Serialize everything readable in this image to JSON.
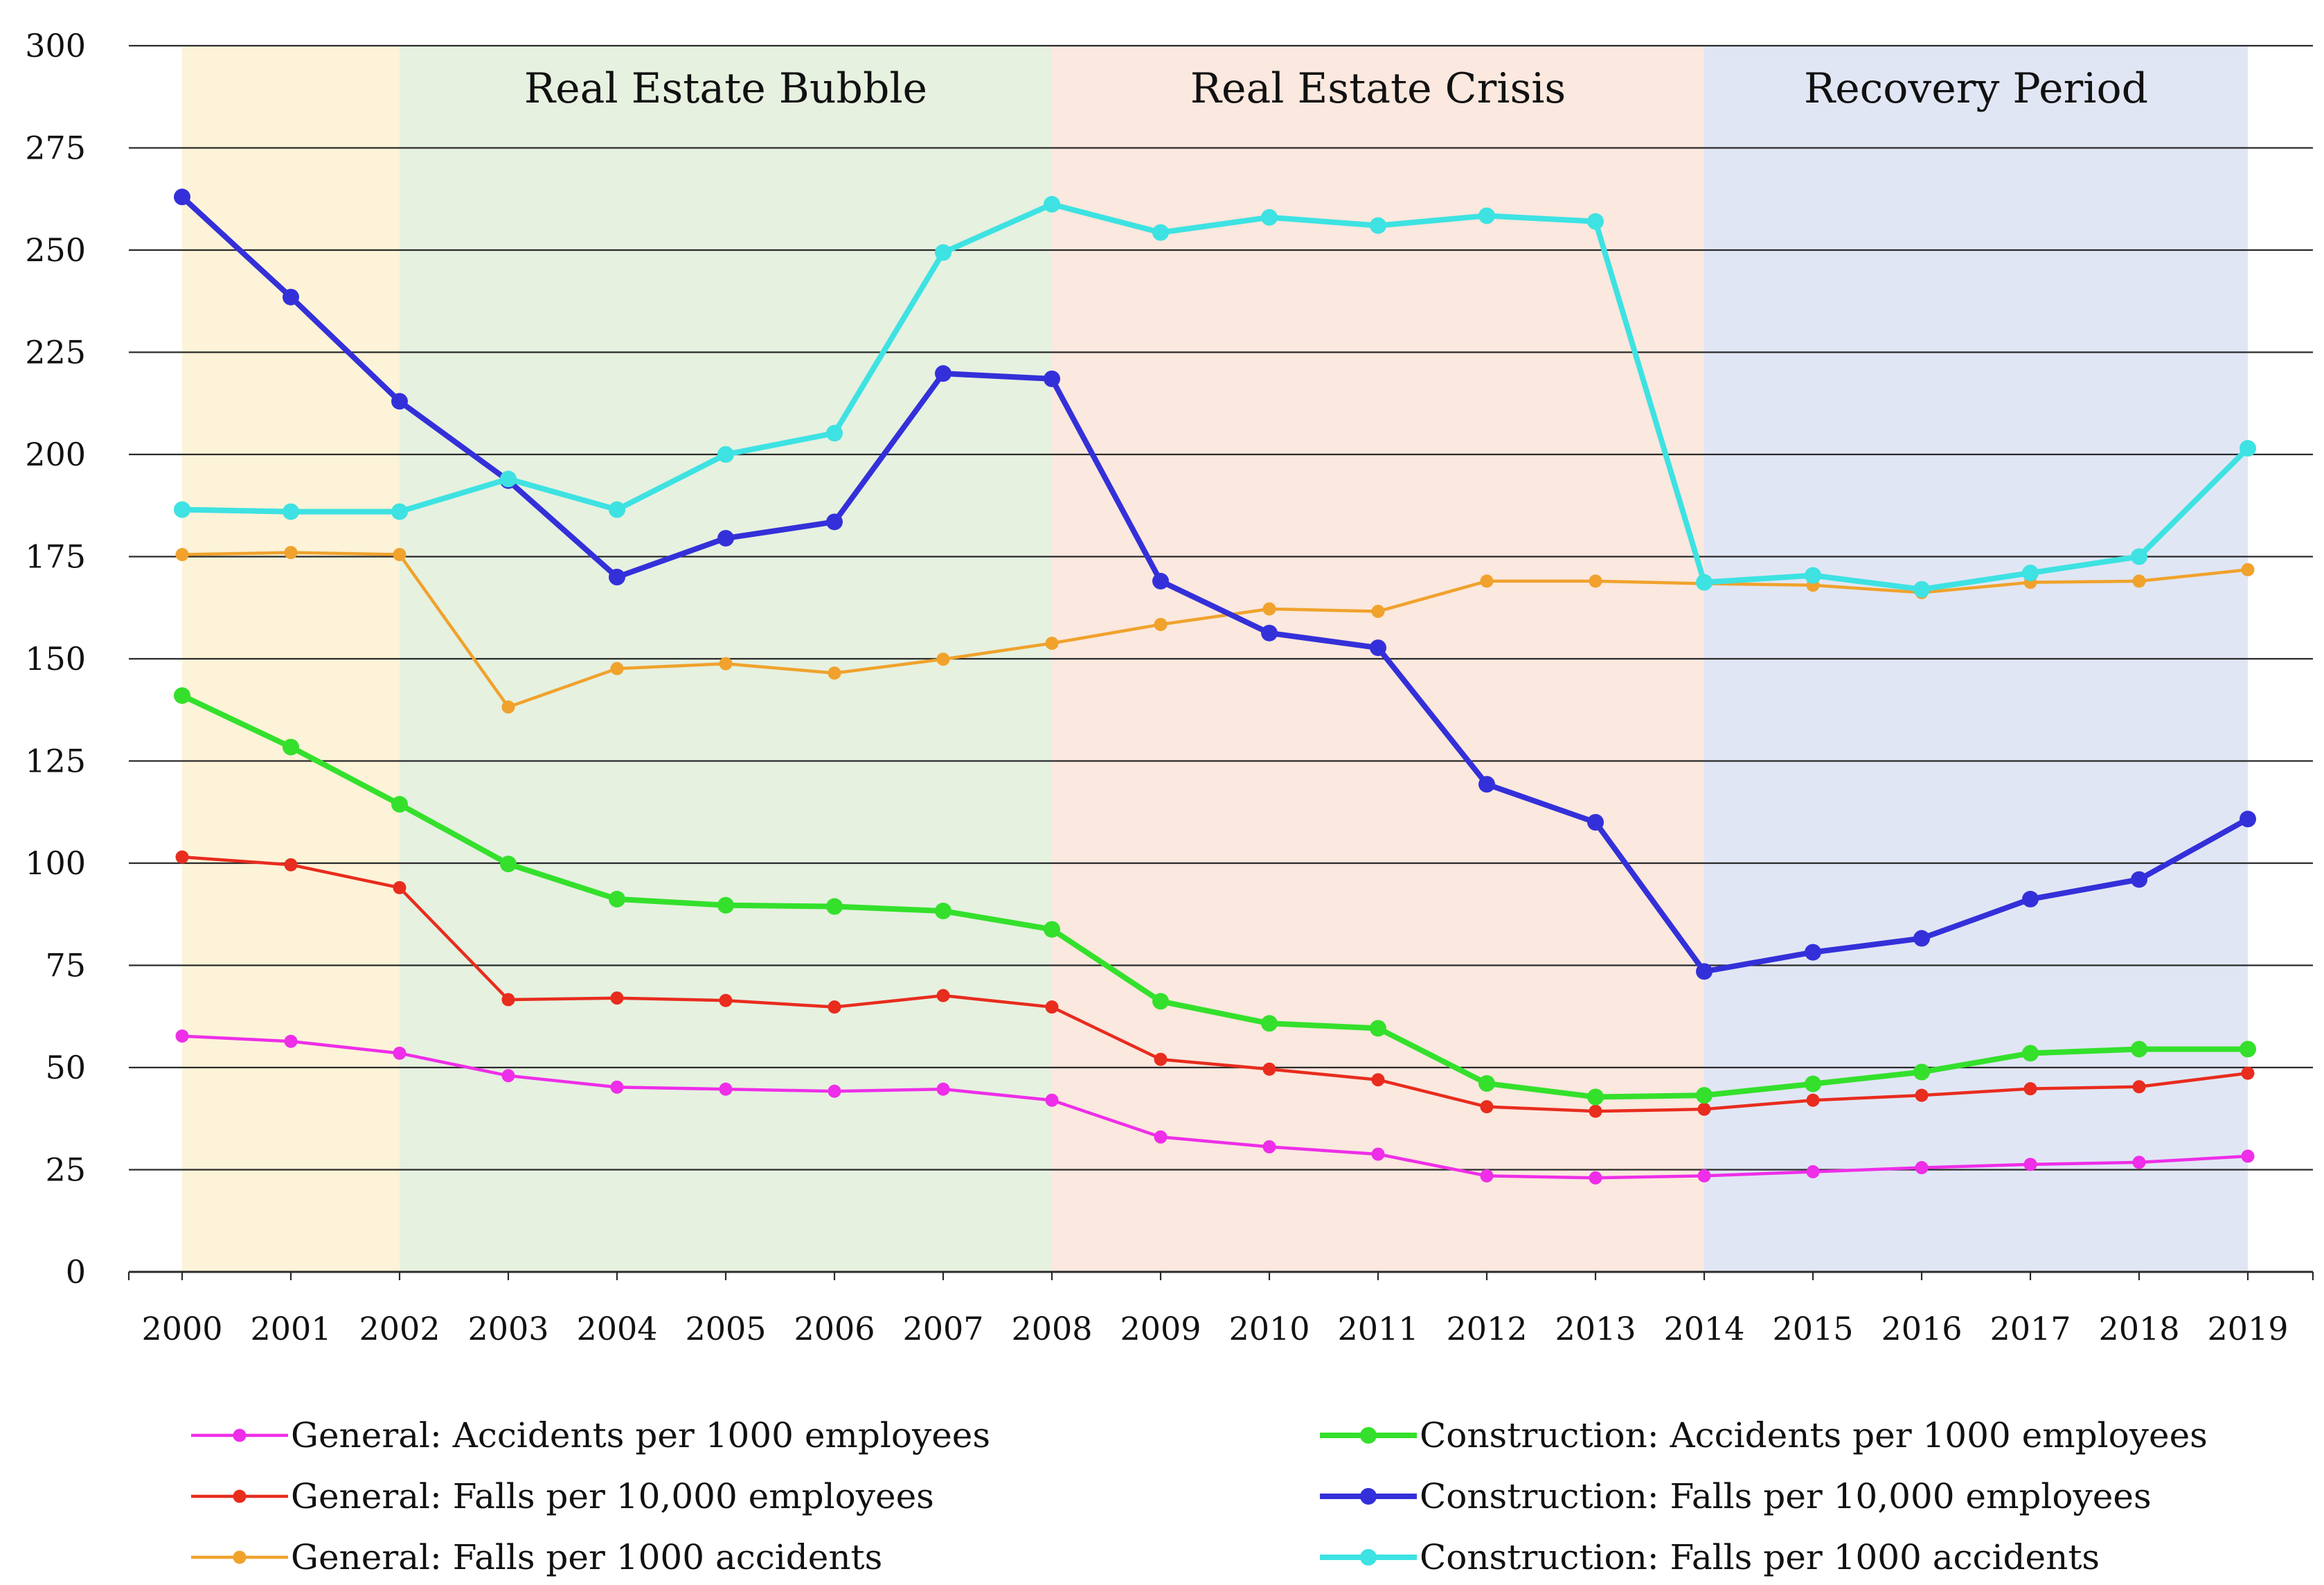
{
  "chart_data": {
    "type": "line",
    "title": "",
    "xlabel": "",
    "ylabel": "",
    "x": [
      "2000",
      "2001",
      "2002",
      "2003",
      "2004",
      "2005",
      "2006",
      "2007",
      "2008",
      "2009",
      "2010",
      "2011",
      "2012",
      "2013",
      "2014",
      "2015",
      "2016",
      "2017",
      "2018",
      "2019"
    ],
    "ylim": [
      0,
      300
    ],
    "yticks": [
      "0",
      "25",
      "50",
      "75",
      "100",
      "125",
      "150",
      "175",
      "200",
      "225",
      "250",
      "275",
      "300"
    ],
    "grid": "horizontal",
    "legend_position": "bottom",
    "periods": [
      {
        "label": "",
        "start": "2000",
        "end": "2002",
        "color": "#fdf3d8"
      },
      {
        "label": "Real Estate Bubble",
        "start": "2002",
        "end": "2008",
        "color": "#e6f1e0"
      },
      {
        "label": "Real Estate Crisis",
        "start": "2008",
        "end": "2014",
        "color": "#fbe8de"
      },
      {
        "label": "Recovery Period",
        "start": "2014",
        "end": "2019",
        "color": "#e1e6f4"
      }
    ],
    "series": [
      {
        "name": "General: Accidents per 1000 employees",
        "color": "#ee2ee8",
        "weight": "thin",
        "values": [
          57.7,
          56.4,
          53.5,
          48,
          45.2,
          44.7,
          44.2,
          44.7,
          42,
          33,
          30.6,
          28.8,
          23.5,
          23,
          23.5,
          24.5,
          25.5,
          26.3,
          26.8,
          28.3
        ]
      },
      {
        "name": "General: Falls per 10,000 employees",
        "color": "#e82c1e",
        "weight": "thin",
        "values": [
          101.5,
          99.6,
          94,
          66.6,
          67,
          66.4,
          64.8,
          67.6,
          64.8,
          52,
          49.6,
          47,
          40.4,
          39.3,
          39.8,
          42,
          43.2,
          44.8,
          45.3,
          48.6
        ]
      },
      {
        "name": "General: Falls per 1000 accidents",
        "color": "#f0a22c",
        "weight": "thin",
        "values": [
          175.5,
          176,
          175.5,
          138.2,
          147.6,
          148.8,
          146.5,
          149.9,
          153.8,
          158.4,
          162.2,
          161.6,
          169,
          169,
          168.4,
          168,
          166.2,
          168.7,
          169,
          171.8
        ]
      },
      {
        "name": "Construction: Accidents per 1000 employees",
        "color": "#34e02c",
        "weight": "thick",
        "values": [
          141,
          128.4,
          114.4,
          99.8,
          91.2,
          89.7,
          89.4,
          88.3,
          83.8,
          66.2,
          60.8,
          59.6,
          46.1,
          42.8,
          43.2,
          46,
          48.9,
          53.5,
          54.5,
          54.5
        ]
      },
      {
        "name": "Construction: Falls per 10,000 employees",
        "color": "#3430d9",
        "weight": "thick",
        "values": [
          263,
          238.5,
          213,
          193.6,
          170,
          179.5,
          183.5,
          219.8,
          218.5,
          169,
          156.3,
          152.7,
          119.3,
          110,
          73.5,
          78.2,
          81.6,
          91.2,
          96,
          110.8
        ]
      },
      {
        "name": "Construction: Falls per 1000 accidents",
        "color": "#3ee2e2",
        "weight": "thick",
        "values": [
          186.5,
          186,
          186,
          194,
          186.5,
          200,
          205.2,
          249.4,
          261.2,
          254.3,
          258,
          256,
          258.4,
          257,
          168.7,
          170.4,
          167,
          171,
          175,
          201.5
        ]
      }
    ]
  }
}
